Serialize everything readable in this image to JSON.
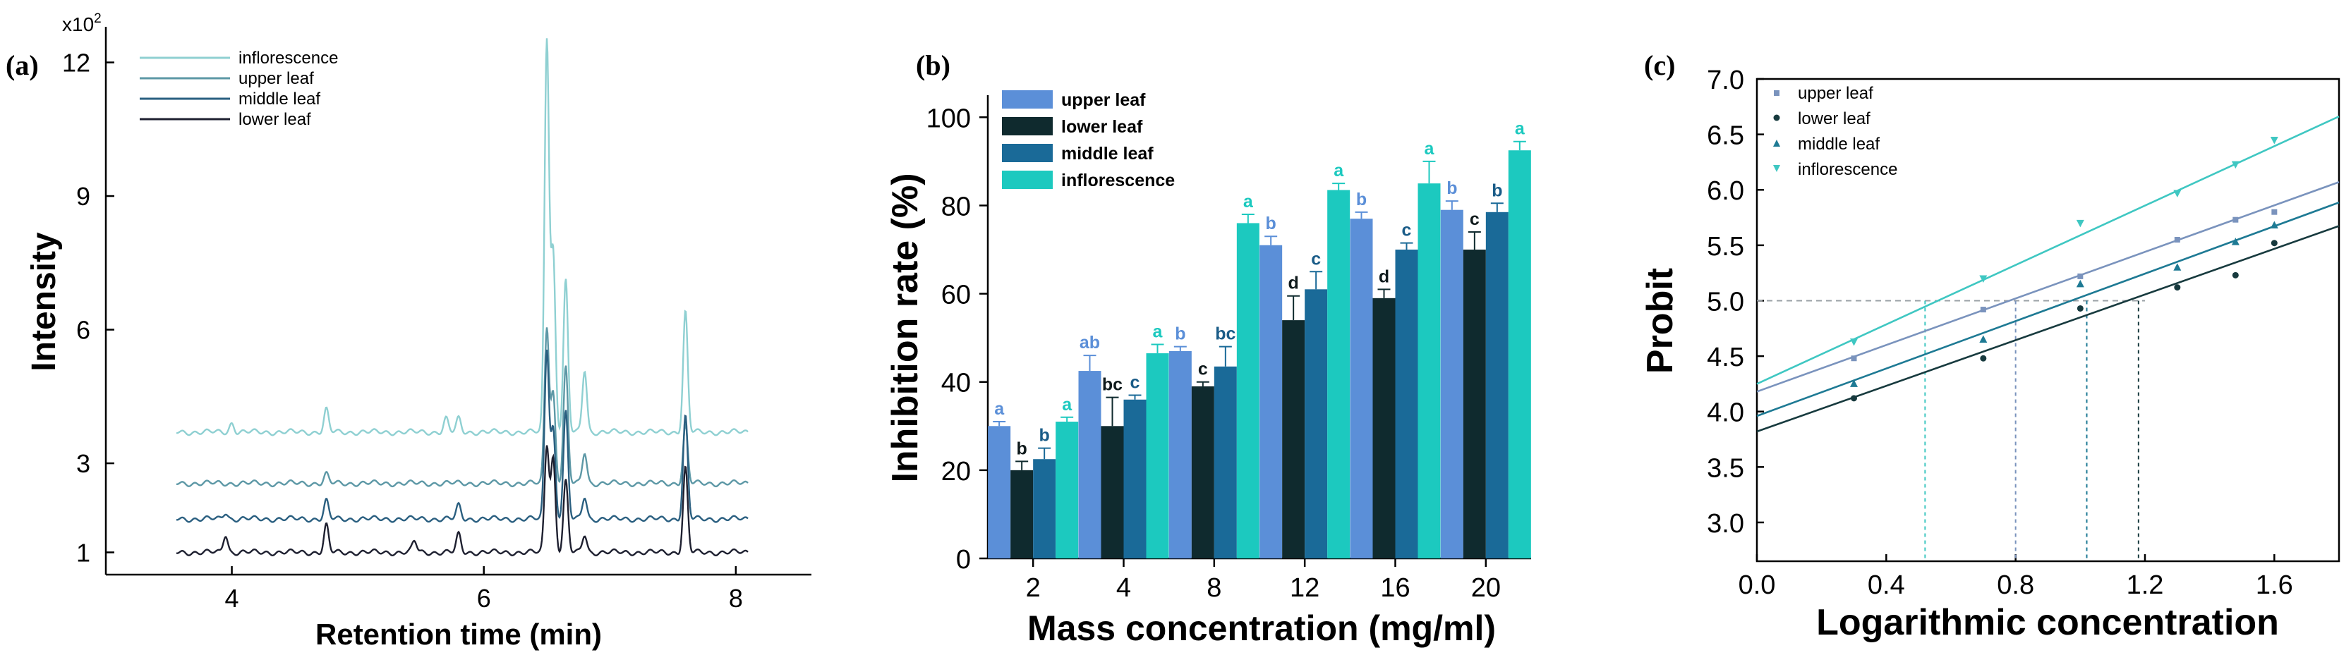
{
  "chart_data": [
    {
      "panel": "(a)",
      "type": "line",
      "title": "",
      "xlabel": "Retention time (min)",
      "ylabel": "Intensity",
      "y_multiplier": "x10",
      "y_multiplier_exp": "2",
      "xlim": [
        3.0,
        8.6
      ],
      "ylim": [
        0.5,
        12.8
      ],
      "xticks": [
        "4",
        "6",
        "8"
      ],
      "yticks": [
        "1",
        "3",
        "6",
        "9",
        "12"
      ],
      "legend": [
        "inflorescence",
        "upper leaf",
        "middle leaf",
        "lower leaf"
      ],
      "colors": {
        "inflorescence": "#8fd0d2",
        "upper leaf": "#5d98a6",
        "middle leaf": "#2a5f80",
        "lower leaf": "#1e2030"
      },
      "baselines": {
        "inflorescence": 3.7,
        "upper leaf": 2.55,
        "middle leaf": 1.75,
        "lower leaf": 1.0
      },
      "peaks": {
        "inflorescence": [
          [
            3.45,
            1.6
          ],
          [
            4.0,
            0.2
          ],
          [
            4.75,
            0.5
          ],
          [
            5.7,
            0.3
          ],
          [
            5.8,
            0.3
          ],
          [
            6.5,
            8.8
          ],
          [
            6.55,
            4.0
          ],
          [
            6.65,
            3.4
          ],
          [
            6.8,
            1.4
          ],
          [
            7.6,
            2.7
          ]
        ],
        "upper leaf": [
          [
            3.45,
            0.5
          ],
          [
            4.75,
            0.2
          ],
          [
            6.5,
            3.5
          ],
          [
            6.55,
            2.0
          ],
          [
            6.65,
            2.6
          ],
          [
            6.8,
            0.7
          ],
          [
            7.6,
            1.3
          ]
        ],
        "middle leaf": [
          [
            3.45,
            0.9
          ],
          [
            3.95,
            0.15
          ],
          [
            4.75,
            0.4
          ],
          [
            5.8,
            0.3
          ],
          [
            6.5,
            3.8
          ],
          [
            6.55,
            2.0
          ],
          [
            6.65,
            2.4
          ],
          [
            6.8,
            0.5
          ],
          [
            7.6,
            2.3
          ]
        ],
        "lower leaf": [
          [
            3.45,
            1.3
          ],
          [
            3.95,
            0.4
          ],
          [
            4.75,
            0.6
          ],
          [
            5.45,
            0.25
          ],
          [
            5.8,
            0.4
          ],
          [
            6.5,
            2.4
          ],
          [
            6.55,
            2.1
          ],
          [
            6.65,
            1.6
          ],
          [
            6.8,
            0.4
          ],
          [
            7.6,
            1.9
          ]
        ]
      }
    },
    {
      "panel": "(b)",
      "type": "bar",
      "title": "",
      "xlabel": "Mass concentration (mg/ml)",
      "ylabel": "Inhibition rate (%)",
      "ylim": [
        0,
        105
      ],
      "yticks": [
        "0",
        "20",
        "40",
        "60",
        "80",
        "100"
      ],
      "categories": [
        "2",
        "4",
        "8",
        "12",
        "16",
        "20"
      ],
      "series": [
        {
          "name": "upper leaf",
          "color": "#5b8fd8",
          "values": [
            30,
            42.5,
            47,
            71,
            77,
            79
          ],
          "errors": [
            1,
            3.5,
            1,
            2,
            1.5,
            2
          ],
          "letters": [
            "a",
            "ab",
            "b",
            "b",
            "b",
            "b"
          ]
        },
        {
          "name": "lower leaf",
          "color": "#0f2a2e",
          "values": [
            20,
            30,
            39,
            54,
            59,
            70
          ],
          "errors": [
            2,
            6.5,
            1,
            5.5,
            2,
            4
          ],
          "letters": [
            "b",
            "bc",
            "c",
            "d",
            "d",
            "c"
          ]
        },
        {
          "name": "middle leaf",
          "color": "#1a6a98",
          "values": [
            22.5,
            36,
            43.5,
            61,
            70,
            78.5
          ],
          "errors": [
            2.5,
            1,
            4.5,
            4,
            1.5,
            2
          ],
          "letters": [
            "b",
            "c",
            "bc",
            "c",
            "c",
            "b"
          ]
        },
        {
          "name": "inflorescence",
          "color": "#1cc9bf",
          "values": [
            31,
            46.5,
            76,
            83.5,
            85,
            92.5
          ],
          "errors": [
            1,
            2,
            2,
            1.5,
            5,
            2
          ],
          "letters": [
            "a",
            "a",
            "a",
            "a",
            "a",
            "a"
          ]
        }
      ]
    },
    {
      "panel": "(c)",
      "type": "scatter",
      "title": "",
      "xlabel": "Logarithmic concentration",
      "ylabel": "Probit",
      "xlim": [
        0.0,
        1.8
      ],
      "ylim": [
        2.65,
        7.0
      ],
      "xticks": [
        "0.0",
        "0.4",
        "0.8",
        "1.2",
        "1.6"
      ],
      "yticks": [
        "3.0",
        "3.5",
        "4.0",
        "4.5",
        "5.0",
        "5.5",
        "6.0",
        "6.5",
        "7.0"
      ],
      "reference_probit": 5.0,
      "series": [
        {
          "name": "upper leaf",
          "color": "#7a93bd",
          "marker": "square",
          "x": [
            0.3,
            0.7,
            1.0,
            1.3,
            1.48,
            1.6
          ],
          "y": [
            4.48,
            4.92,
            5.22,
            5.55,
            5.73,
            5.8
          ],
          "intercept": 4.18,
          "slope": 1.05,
          "lc50": 0.8
        },
        {
          "name": "lower leaf",
          "color": "#173a3e",
          "marker": "circle",
          "x": [
            0.3,
            0.7,
            1.0,
            1.3,
            1.48,
            1.6
          ],
          "y": [
            4.12,
            4.48,
            4.93,
            5.12,
            5.23,
            5.52
          ],
          "intercept": 3.82,
          "slope": 1.03,
          "lc50": 1.18
        },
        {
          "name": "middle leaf",
          "color": "#1e7a94",
          "marker": "triangle-up",
          "x": [
            0.3,
            0.7,
            1.0,
            1.3,
            1.48,
            1.6
          ],
          "y": [
            4.25,
            4.65,
            5.15,
            5.3,
            5.53,
            5.68
          ],
          "intercept": 3.96,
          "slope": 1.07,
          "lc50": 1.02
        },
        {
          "name": "inflorescence",
          "color": "#3fc7c2",
          "marker": "triangle-down",
          "x": [
            0.3,
            0.7,
            1.0,
            1.3,
            1.48,
            1.6
          ],
          "y": [
            4.63,
            5.2,
            5.7,
            5.97,
            6.23,
            6.45
          ],
          "intercept": 4.25,
          "slope": 1.34,
          "lc50": 0.52
        }
      ]
    }
  ]
}
